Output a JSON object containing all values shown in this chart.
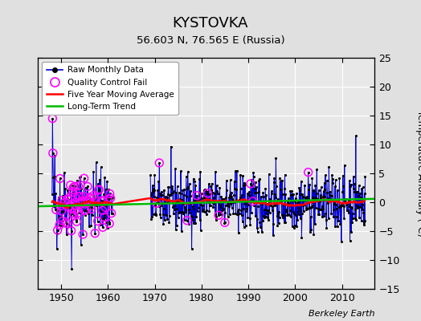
{
  "title": "KYSTOVKA",
  "subtitle": "56.603 N, 76.565 E (Russia)",
  "ylabel": "Temperature Anomaly (°C)",
  "credit": "Berkeley Earth",
  "xlim": [
    1945,
    2017
  ],
  "ylim": [
    -15,
    25
  ],
  "yticks": [
    -15,
    -10,
    -5,
    0,
    5,
    10,
    15,
    20,
    25
  ],
  "xticks": [
    1950,
    1960,
    1970,
    1980,
    1990,
    2000,
    2010
  ],
  "bg_color": "#e0e0e0",
  "plot_bg_color": "#e8e8e8",
  "line_color": "#0000cc",
  "dot_color": "#000000",
  "qc_color": "#ff00ff",
  "moving_avg_color": "#ff0000",
  "trend_color": "#00bb00",
  "seed": 42
}
